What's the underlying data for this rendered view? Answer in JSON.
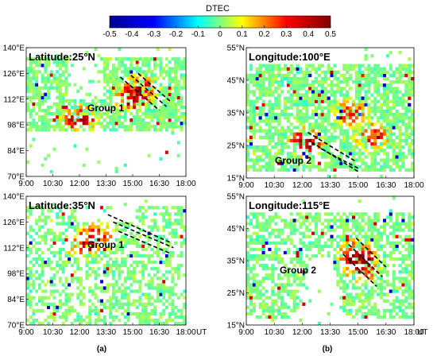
{
  "figure": {
    "colorbar": {
      "title": "DTEC",
      "min": -0.5,
      "max": 0.5,
      "ticks": [
        "-0.5",
        "-0.4",
        "-0.3",
        "-0.2",
        "-0.1",
        "0",
        "0.1",
        "0.2",
        "0.3",
        "0.4",
        "0.5"
      ],
      "colormap": "jet",
      "stops": [
        "#00008f",
        "#0000ff",
        "#00ffff",
        "#ffff00",
        "#ff0000",
        "#800000"
      ]
    },
    "x_unit_label": "UT",
    "captions": [
      "(a)",
      "(b)"
    ]
  },
  "chart_data": [
    {
      "type": "heatmap",
      "title": "Latitude:25°N",
      "group_label": "Group 1",
      "xlabel": "",
      "ylabel": "",
      "xticks": [
        "9:00",
        "10:30",
        "12:00",
        "13:30",
        "15:00",
        "16:30",
        "18:00"
      ],
      "yticks": [
        "140°E",
        "126°E",
        "112°E",
        "98°E",
        "84°E",
        "70°E"
      ],
      "xlim": [
        9,
        18
      ],
      "ylim": [
        70,
        140
      ],
      "y_data_band": [
        95,
        135
      ],
      "band_style": "dense",
      "hot_spots": [
        {
          "x": 12.0,
          "y": 101,
          "value": 0.4
        },
        {
          "x": 14.9,
          "y": 113,
          "value": 0.3
        },
        {
          "x": 15.5,
          "y": 118,
          "value": 0.3
        }
      ],
      "dashed_lines": [
        {
          "x0": 14.3,
          "y0": 124,
          "x1": 16.5,
          "y1": 106
        },
        {
          "x0": 14.9,
          "y0": 125,
          "x1": 16.9,
          "y1": 108
        },
        {
          "x0": 15.3,
          "y0": 126,
          "x1": 17.1,
          "y1": 111
        }
      ]
    },
    {
      "type": "heatmap",
      "title": "Latitude:35°N",
      "group_label": "Group 1",
      "xlabel": "",
      "ylabel": "",
      "xticks": [
        "9:00",
        "10:30",
        "12:00",
        "13:30",
        "15:00",
        "16:30",
        "18:00"
      ],
      "yticks": [
        "140°E",
        "126°E",
        "112°E",
        "98°E",
        "84°E",
        "70°E"
      ],
      "xlim": [
        9,
        18
      ],
      "ylim": [
        70,
        140
      ],
      "y_data_band": [
        70,
        135
      ],
      "band_style": "sparse",
      "hot_spots": [
        {
          "x": 12.3,
          "y": 114,
          "value": 0.35
        },
        {
          "x": 13.1,
          "y": 118,
          "value": 0.3
        }
      ],
      "dashed_lines": [
        {
          "x0": 13.6,
          "y0": 130,
          "x1": 17.1,
          "y1": 115
        },
        {
          "x0": 13.9,
          "y0": 126,
          "x1": 17.3,
          "y1": 112
        },
        {
          "x0": 14.2,
          "y0": 121,
          "x1": 17.1,
          "y1": 109
        }
      ]
    },
    {
      "type": "heatmap",
      "title": "Longitude:100°E",
      "group_label": "Group 2",
      "xlabel": "",
      "ylabel": "",
      "xticks": [
        "9:00",
        "10:30",
        "12:00",
        "13:30",
        "15:00",
        "16:30",
        "18:00"
      ],
      "yticks": [
        "55°N",
        "45°N",
        "35°N",
        "25°N",
        "15°N"
      ],
      "xlim": [
        9,
        18
      ],
      "ylim": [
        15,
        55
      ],
      "y_data_band": [
        17,
        50
      ],
      "band_style": "dense",
      "hot_spots": [
        {
          "x": 12.2,
          "y": 26,
          "value": 0.45
        },
        {
          "x": 14.6,
          "y": 35,
          "value": 0.3
        },
        {
          "x": 15.8,
          "y": 28,
          "value": 0.3
        }
      ],
      "dashed_lines": [
        {
          "x0": 12.3,
          "y0": 29,
          "x1": 14.9,
          "y1": 20
        },
        {
          "x0": 12.5,
          "y0": 26,
          "x1": 15.0,
          "y1": 17
        },
        {
          "x0": 13.0,
          "y0": 24,
          "x1": 15.0,
          "y1": 18
        }
      ]
    },
    {
      "type": "heatmap",
      "title": "Longitude:115°E",
      "group_label": "Group 2",
      "xlabel": "",
      "ylabel": "",
      "xticks": [
        "9:00",
        "10:30",
        "12:00",
        "13:30",
        "15:00",
        "16:30",
        "18:00"
      ],
      "yticks": [
        "55°N",
        "45°N",
        "35°N",
        "25°N",
        "15°N"
      ],
      "xlim": [
        9,
        18
      ],
      "ylim": [
        15,
        55
      ],
      "y_data_band": [
        17,
        50
      ],
      "band_style": "wedge",
      "hot_spots": [
        {
          "x": 14.9,
          "y": 37,
          "value": 0.4
        },
        {
          "x": 15.2,
          "y": 33,
          "value": 0.35
        }
      ],
      "dashed_lines": [
        {
          "x0": 14.2,
          "y0": 37,
          "x1": 16.0,
          "y1": 27
        },
        {
          "x0": 14.5,
          "y0": 40,
          "x1": 16.3,
          "y1": 30
        },
        {
          "x0": 14.9,
          "y0": 42,
          "x1": 16.5,
          "y1": 33
        }
      ]
    }
  ]
}
